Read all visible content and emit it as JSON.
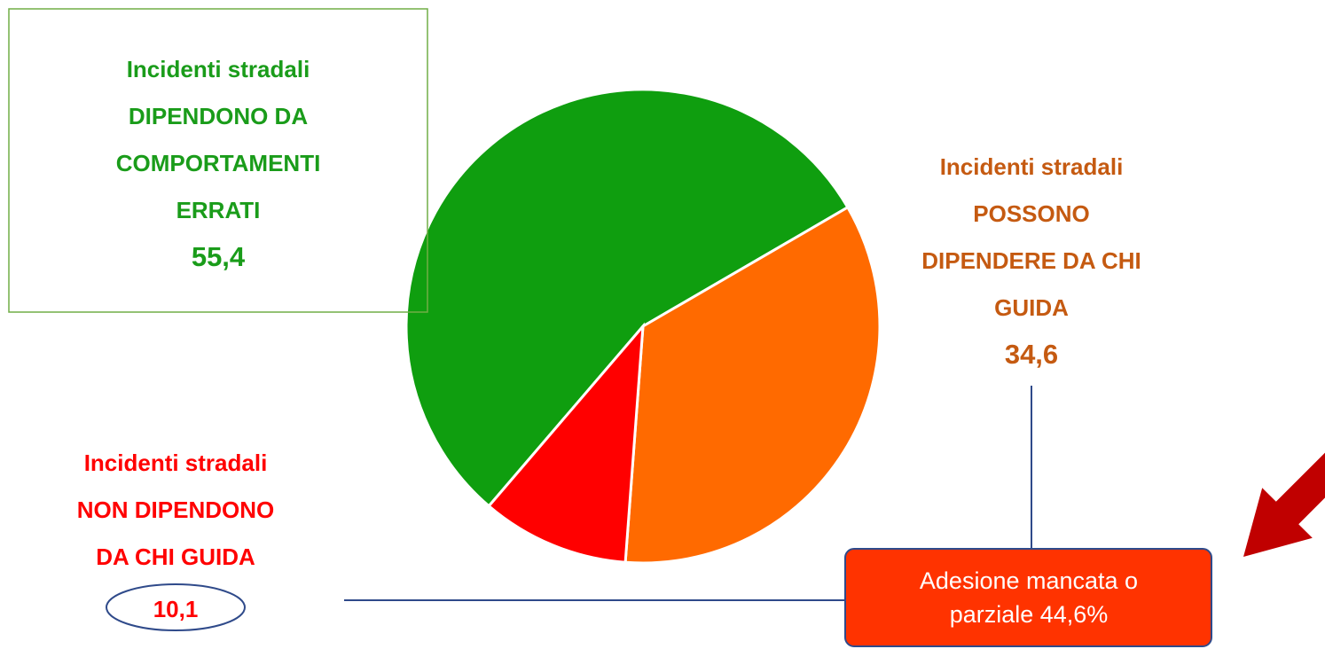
{
  "chart_data": {
    "type": "pie",
    "categories": [
      [
        "Incidenti stradali",
        "DIPENDONO DA",
        "COMPORTAMENTI",
        "ERRATI"
      ],
      [
        "Incidenti stradali",
        "POSSONO",
        "DIPENDERE DA CHI",
        "GUIDA"
      ],
      [
        "Incidenti stradali",
        "NON DIPENDONO",
        "DA CHI GUIDA"
      ]
    ],
    "values": [
      55.4,
      34.6,
      10.1
    ],
    "value_labels": [
      "55,4",
      "34,6",
      "10,1"
    ],
    "colors": [
      "#0f9e0f",
      "#ff6a00",
      "#ff0000"
    ],
    "label_colors": [
      "#1a9c1a",
      "#c55a11",
      "#ff0000"
    ],
    "annotation": [
      "Adesione mancata o",
      "parziale 44,6%"
    ]
  }
}
